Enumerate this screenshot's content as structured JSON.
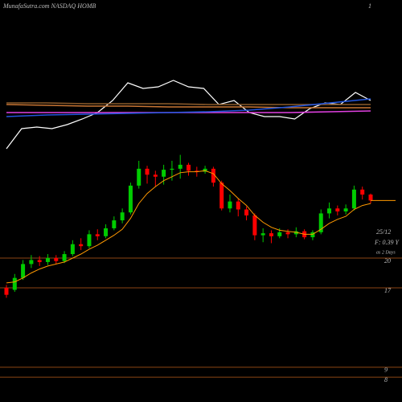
{
  "chart_data": {
    "type": "candlestick",
    "title": "MunafaSutra.com NASDAQ HOMB",
    "corner_label": "1",
    "notes": [
      "25/12",
      "F: 0.39 Y",
      "as 2 Days"
    ],
    "ylim": [
      5.5,
      46
    ],
    "levels": [
      20,
      17,
      9,
      8
    ],
    "level_color": "#8b4513",
    "up_color": "#00cc00",
    "down_color": "#ff0000",
    "open": [
      17.0,
      16.8,
      18.0,
      19.4,
      19.8,
      19.6,
      20.0,
      19.7,
      20.4,
      21.4,
      21.2,
      22.4,
      22.2,
      23.0,
      23.8,
      24.6,
      27.3,
      29.0,
      28.4,
      28.2,
      28.9,
      29.0,
      29.4,
      28.8,
      28.7,
      29.0,
      27.6,
      25.0,
      25.7,
      24.9,
      24.3,
      22.3,
      22.5,
      22.2,
      22.6,
      22.4,
      22.7,
      22.1,
      22.6,
      24.5,
      25.0,
      24.7,
      25.0,
      26.9,
      26.4
    ],
    "high": [
      17.3,
      18.4,
      19.8,
      20.3,
      20.2,
      20.4,
      20.3,
      20.7,
      21.8,
      22.0,
      22.8,
      22.9,
      23.4,
      24.2,
      25.0,
      27.6,
      29.8,
      29.3,
      28.8,
      29.4,
      29.8,
      30.4,
      29.6,
      29.2,
      29.3,
      29.2,
      27.8,
      26.4,
      26.0,
      25.2,
      24.5,
      23.0,
      22.8,
      23.0,
      22.9,
      23.1,
      22.9,
      22.8,
      24.9,
      25.6,
      25.3,
      25.4,
      27.3,
      27.2,
      26.5
    ],
    "low": [
      16.0,
      16.6,
      17.8,
      19.0,
      19.2,
      19.3,
      19.4,
      19.5,
      20.2,
      20.8,
      21.0,
      21.8,
      22.0,
      22.8,
      23.5,
      24.4,
      27.0,
      27.5,
      27.2,
      27.4,
      27.8,
      28.0,
      28.3,
      28.2,
      28.5,
      27.2,
      24.8,
      24.6,
      24.2,
      23.8,
      21.8,
      21.6,
      21.5,
      22.0,
      22.0,
      22.1,
      21.9,
      21.8,
      22.4,
      24.0,
      24.3,
      24.4,
      24.8,
      25.9,
      25.5
    ],
    "close": [
      16.3,
      18.0,
      19.4,
      19.8,
      19.6,
      20.0,
      19.7,
      20.4,
      21.4,
      21.2,
      22.4,
      22.2,
      23.0,
      23.8,
      24.6,
      27.3,
      29.0,
      28.4,
      28.2,
      28.9,
      29.0,
      29.4,
      28.8,
      28.7,
      29.0,
      27.6,
      25.0,
      25.7,
      24.9,
      24.3,
      22.3,
      22.5,
      22.2,
      22.6,
      22.4,
      22.7,
      22.1,
      22.6,
      24.5,
      25.0,
      24.7,
      25.0,
      26.9,
      26.4,
      25.8
    ],
    "ma": {
      "color": "#ff9900",
      "values": [
        17.5,
        17.6,
        18.0,
        18.5,
        18.9,
        19.2,
        19.4,
        19.6,
        20.0,
        20.4,
        20.9,
        21.3,
        21.8,
        22.3,
        22.9,
        24.0,
        25.5,
        26.5,
        27.2,
        27.8,
        28.2,
        28.6,
        28.7,
        28.7,
        28.8,
        28.5,
        27.5,
        26.8,
        26.0,
        25.3,
        24.3,
        23.6,
        23.1,
        22.8,
        22.7,
        22.6,
        22.4,
        22.4,
        22.9,
        23.5,
        23.9,
        24.2,
        24.9,
        25.3,
        25.5
      ]
    },
    "last_color": "#ff9900",
    "indicator_lim": [
      0,
      100
    ],
    "indicator": [
      {
        "color": "#ffffff",
        "values": [
          5,
          30,
          32,
          30,
          35,
          42,
          50,
          65,
          87,
          80,
          82,
          90,
          82,
          80,
          60,
          65,
          50,
          45,
          45,
          42,
          55,
          62,
          60,
          75,
          65
        ]
      },
      {
        "color": "#c87533",
        "values": [
          60,
          59,
          58,
          58,
          57,
          57,
          57,
          56,
          56,
          56
        ]
      },
      {
        "color": "#8b5a2b",
        "values": [
          62,
          62,
          61,
          61,
          61,
          60,
          60,
          60,
          60,
          60
        ]
      },
      {
        "color": "#e040e0",
        "values": [
          50,
          50,
          50,
          50,
          50,
          50,
          50,
          50,
          51,
          52
        ]
      },
      {
        "color": "#2255dd",
        "values": [
          45,
          47,
          48,
          49,
          50,
          51,
          53,
          57,
          62,
          67
        ]
      }
    ]
  }
}
